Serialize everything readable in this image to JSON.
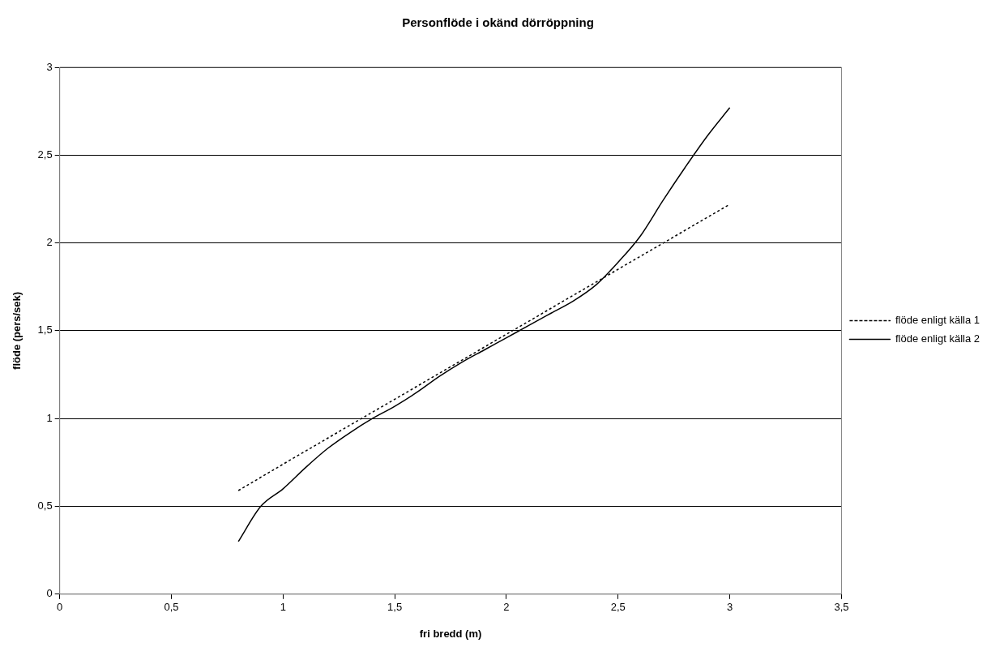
{
  "chart_data": {
    "type": "line",
    "title": "Personflöde i okänd dörröppning",
    "xlabel": "fri bredd (m)",
    "ylabel": "flöde (pers/sek)",
    "xlim": [
      0,
      3.5
    ],
    "xticks": [
      0,
      {
        "value": 0.5,
        "label": "0,5"
      },
      1,
      {
        "value": 1.5,
        "label": "1,5"
      },
      2,
      {
        "value": 2.5,
        "label": "2,5"
      },
      3,
      {
        "value": 3.5,
        "label": "3,5"
      }
    ],
    "ylim": [
      0,
      3
    ],
    "yticks": [
      0,
      {
        "value": 0.5,
        "label": "0,5"
      },
      1,
      {
        "value": 1.5,
        "label": "1,5"
      },
      2,
      {
        "value": 2.5,
        "label": "2,5"
      },
      3
    ],
    "grid": "y",
    "legend": "right",
    "marker": "none",
    "series": [
      {
        "name": "flöde enligt källa 1",
        "color": "#000000",
        "line_style": "dotted",
        "x": [
          0.8,
          1.0,
          1.5,
          2.0,
          2.5,
          3.0
        ],
        "values": [
          0.59,
          0.74,
          1.11,
          1.48,
          1.85,
          2.22
        ]
      },
      {
        "name": "flöde enligt källa 2",
        "color": "#000000",
        "line_style": "solid",
        "x": [
          0.8,
          0.9,
          1.0,
          1.1,
          1.2,
          1.3,
          1.4,
          1.5,
          1.6,
          1.7,
          1.8,
          1.9,
          2.0,
          2.1,
          2.2,
          2.3,
          2.4,
          2.5,
          2.6,
          2.7,
          2.8,
          2.9,
          3.0
        ],
        "values": [
          0.3,
          0.5,
          0.6,
          0.72,
          0.83,
          0.92,
          1.0,
          1.07,
          1.15,
          1.24,
          1.32,
          1.39,
          1.46,
          1.53,
          1.6,
          1.67,
          1.76,
          1.89,
          2.04,
          2.24,
          2.43,
          2.61,
          2.77
        ]
      }
    ]
  }
}
